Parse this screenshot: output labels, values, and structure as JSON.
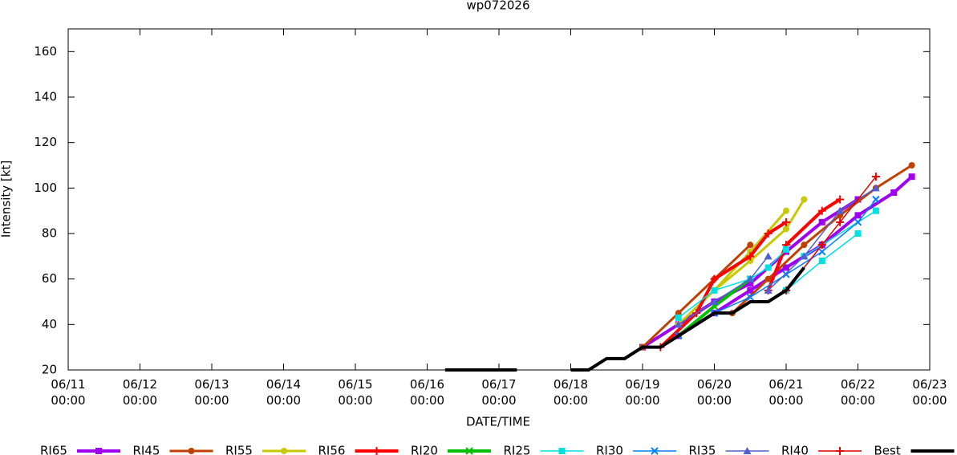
{
  "chart_data": {
    "type": "line",
    "title": "wp072026",
    "x_label": "DATE/TIME",
    "y_label": "Intensity [kt]",
    "xlim": [
      11,
      23
    ],
    "xticks": [
      {
        "value": 11,
        "label": "06/11\n00:00"
      },
      {
        "value": 12,
        "label": "06/12\n00:00"
      },
      {
        "value": 13,
        "label": "06/13\n00:00"
      },
      {
        "value": 14,
        "label": "06/14\n00:00"
      },
      {
        "value": 15,
        "label": "06/15\n00:00"
      },
      {
        "value": 16,
        "label": "06/16\n00:00"
      },
      {
        "value": 17,
        "label": "06/17\n00:00"
      },
      {
        "value": 18,
        "label": "06/18\n00:00"
      },
      {
        "value": 19,
        "label": "06/19\n00:00"
      },
      {
        "value": 20,
        "label": "06/20\n00:00"
      },
      {
        "value": 21,
        "label": "06/21\n00:00"
      },
      {
        "value": 22,
        "label": "06/22\n00:00"
      },
      {
        "value": 23,
        "label": "06/23\n00:00"
      }
    ],
    "ylim": [
      20,
      170
    ],
    "yticks": [
      20,
      40,
      60,
      80,
      100,
      120,
      140,
      160
    ],
    "series": [
      {
        "name": "RI65",
        "color": "#a000f0",
        "marker": "square",
        "width": 4,
        "x": [
          19,
          19.5,
          20,
          20.5,
          21,
          21.5,
          22,
          null,
          19.5,
          20,
          20.5,
          21,
          21.5,
          22,
          22.5,
          22.75
        ],
        "values": [
          30,
          40,
          50,
          58,
          72,
          85,
          95,
          null,
          35,
          45,
          55,
          65,
          75,
          88,
          98,
          105
        ]
      },
      {
        "name": "RI45",
        "color": "#c04000",
        "marker": "circle",
        "width": 3,
        "x": [
          19,
          19.5,
          20,
          20.5,
          null,
          20.25,
          20.75,
          21.25,
          21.75,
          22.25,
          22.75
        ],
        "values": [
          30,
          45,
          60,
          75,
          null,
          45,
          60,
          75,
          88,
          100,
          110
        ]
      },
      {
        "name": "RI55",
        "color": "#c8c800",
        "marker": "circle",
        "width": 3,
        "x": [
          19.5,
          20,
          20.5,
          21,
          21.25,
          null,
          20,
          20.5,
          21
        ],
        "values": [
          40,
          55,
          68,
          82,
          95,
          null,
          55,
          72,
          90
        ]
      },
      {
        "name": "RI56",
        "color": "#ff0000",
        "marker": "plus",
        "width": 4,
        "x": [
          19.25,
          19.75,
          20,
          20.5,
          20.75,
          21,
          null,
          20.75,
          21,
          21.5,
          21.75
        ],
        "values": [
          30,
          45,
          60,
          70,
          80,
          85,
          null,
          55,
          75,
          90,
          95
        ]
      },
      {
        "name": "RI20",
        "color": "#00c000",
        "marker": "x",
        "width": 4,
        "x": [
          19.5,
          20,
          20.5
        ],
        "values": [
          35,
          48,
          60
        ]
      },
      {
        "name": "RI25",
        "color": "#00e0e0",
        "marker": "square",
        "width": 1.5,
        "x": [
          19.5,
          20,
          20.5,
          20.75,
          21,
          null,
          21,
          21.5,
          22,
          null,
          21.25,
          22.25
        ],
        "values": [
          43,
          55,
          60,
          65,
          73,
          null,
          55,
          68,
          80,
          null,
          70,
          90
        ]
      },
      {
        "name": "RI30",
        "color": "#0080ff",
        "marker": "x",
        "width": 1.5,
        "x": [
          19.5,
          20,
          20.5,
          21,
          21.5,
          22,
          22.25
        ],
        "values": [
          35,
          45,
          52,
          62,
          72,
          85,
          95
        ]
      },
      {
        "name": "RI35",
        "color": "#5060d0",
        "marker": "triangle",
        "width": 1.5,
        "x": [
          19.5,
          20,
          20.5,
          20.75,
          null,
          20.75,
          21.25,
          21.75,
          22.25
        ],
        "values": [
          40,
          50,
          60,
          70,
          null,
          55,
          70,
          90,
          100
        ]
      },
      {
        "name": "RI40",
        "color": "#e00000",
        "marker": "plus",
        "width": 1.5,
        "x": [
          21,
          21.5,
          21.75,
          22.25
        ],
        "values": [
          55,
          75,
          85,
          105
        ]
      },
      {
        "name": "Best",
        "color": "#000000",
        "marker": "none",
        "width": 4,
        "x": [
          16.25,
          16.5,
          16.75,
          17,
          17.25,
          null,
          18,
          18.25,
          18.5,
          18.75,
          19,
          19.25,
          19.5,
          19.75,
          20,
          20.25,
          20.5,
          20.75,
          21,
          21.25
        ],
        "values": [
          20,
          20,
          20,
          20,
          20,
          null,
          20,
          20,
          25,
          25,
          30,
          30,
          35,
          40,
          45,
          45,
          50,
          50,
          55,
          65
        ]
      }
    ]
  }
}
